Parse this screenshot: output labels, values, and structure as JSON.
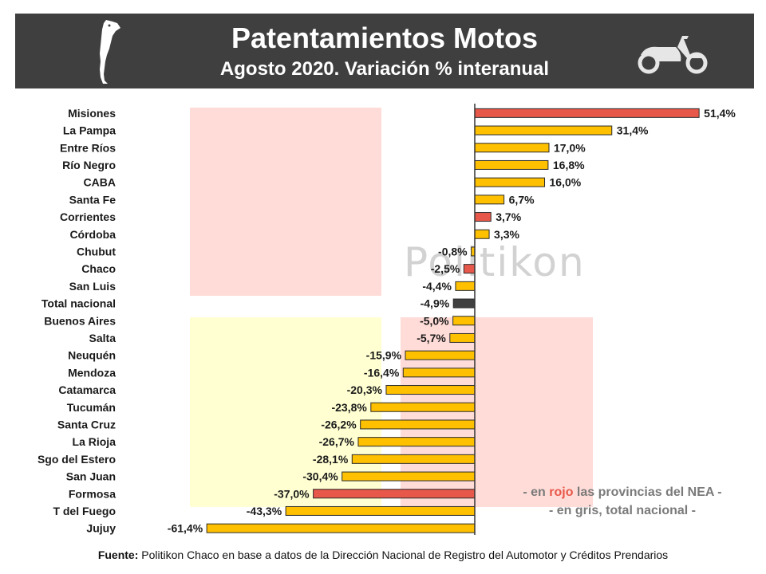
{
  "header": {
    "title": "Patentamientos Motos",
    "subtitle": "Agosto 2020.  Variación % interanual"
  },
  "watermark": "Politikon",
  "legend": {
    "line1_pre": "- en ",
    "line1_red": "rojo",
    "line1_post": " las provincias del NEA -",
    "line2": "- en gris, total nacional -"
  },
  "source": {
    "label": "Fuente:",
    "text": " Politikon Chaco en base a datos de la Dirección Nacional de Registro del Automotor y Créditos Prendarios"
  },
  "colors": {
    "default": "#ffc000",
    "nea": "#e8584a",
    "total": "#404040",
    "banner": "#3f3f3f"
  },
  "chart_data": {
    "type": "bar",
    "orientation": "horizontal",
    "unit": "%",
    "categories": [
      "Misiones",
      "La Pampa",
      "Entre Ríos",
      "Río Negro",
      "CABA",
      "Santa Fe",
      "Corrientes",
      "Córdoba",
      "Chubut",
      "Chaco",
      "San Luis",
      "Total nacional",
      "Buenos Aires",
      "Salta",
      "Neuquén",
      "Mendoza",
      "Catamarca",
      "Tucumán",
      "Santa Cruz",
      "La Rioja",
      "Sgo del Estero",
      "San Juan",
      "Formosa",
      "T del Fuego",
      "Jujuy"
    ],
    "values": [
      51.4,
      31.4,
      17.0,
      16.8,
      16.0,
      6.7,
      3.7,
      3.3,
      -0.8,
      -2.5,
      -4.4,
      -4.9,
      -5.0,
      -5.7,
      -15.9,
      -16.4,
      -20.3,
      -23.8,
      -26.2,
      -26.7,
      -28.1,
      -30.4,
      -37.0,
      -43.3,
      -61.4
    ],
    "labels": [
      "51,4%",
      "31,4%",
      "17,0%",
      "16,8%",
      "16,0%",
      "6,7%",
      "3,7%",
      "3,3%",
      "-0,8%",
      "-2,5%",
      "-4,4%",
      "-4,9%",
      "-5,0%",
      "-5,7%",
      "-15,9%",
      "-16,4%",
      "-20,3%",
      "-23,8%",
      "-26,2%",
      "-26,7%",
      "-28,1%",
      "-30,4%",
      "-37,0%",
      "-43,3%",
      "-61,4%"
    ],
    "groups": [
      "nea",
      "default",
      "default",
      "default",
      "default",
      "default",
      "nea",
      "default",
      "default",
      "nea",
      "default",
      "total",
      "default",
      "default",
      "default",
      "default",
      "default",
      "default",
      "default",
      "default",
      "default",
      "default",
      "nea",
      "default",
      "default"
    ]
  }
}
